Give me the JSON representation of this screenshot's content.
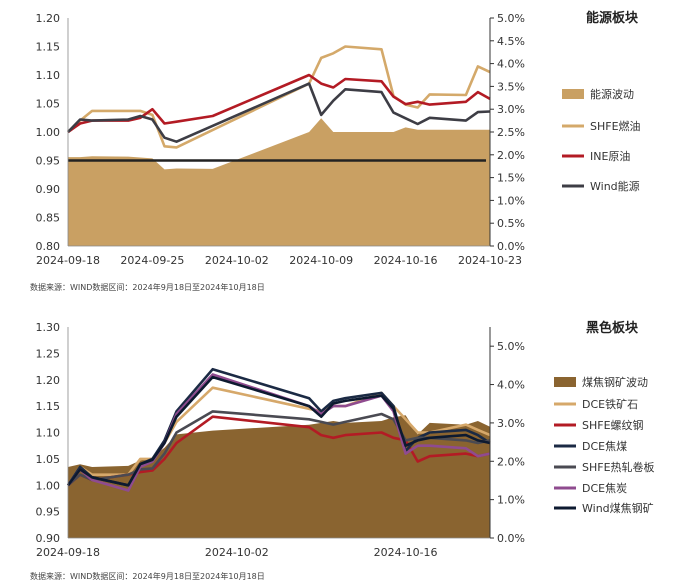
{
  "colors": {
    "energy_area": "#c9a063",
    "shfe_fuel": "#d4a96a",
    "ine_crude": "#b31b24",
    "wind_energy": "#3d3d45",
    "black_area": "#8a6430",
    "dce_iron": "#d6a86a",
    "shfe_rebar": "#b31b24",
    "dce_coking_coal": "#1b2a44",
    "shfe_hotroll": "#4a4a52",
    "dce_coke": "#8f4b8f",
    "wind_black": "#0d1a30",
    "baseline": "#222222"
  },
  "chart_data": [
    {
      "type": "line",
      "title": "能源板块",
      "source_note": "数据来源：WIND数据区间：2024年9月18日至2024年10月18日",
      "x_ticks": [
        "2024-09-18",
        "2024-09-25",
        "2024-10-02",
        "2024-10-09",
        "2024-10-16",
        "2024-10-23"
      ],
      "x_range": [
        "2024-09-18",
        "2024-10-23"
      ],
      "y_left": {
        "range": [
          0.8,
          1.2
        ],
        "ticks": [
          "0.80",
          "0.85",
          "0.90",
          "0.95",
          "1.00",
          "1.05",
          "1.10",
          "1.15",
          "1.20"
        ]
      },
      "y_right": {
        "range": [
          0.0,
          5.0
        ],
        "ticks": [
          "0.0%",
          "0.5%",
          "1.0%",
          "1.5%",
          "2.0%",
          "2.5%",
          "3.0%",
          "3.5%",
          "4.0%",
          "4.5%",
          "5.0%"
        ]
      },
      "reference_line": 0.95,
      "area": {
        "name": "能源波动",
        "axis": "right",
        "x": [
          "2024-09-18",
          "2024-09-19",
          "2024-09-20",
          "2024-09-23",
          "2024-09-24",
          "2024-09-25",
          "2024-09-26",
          "2024-09-27",
          "2024-09-30",
          "2024-10-08",
          "2024-10-09",
          "2024-10-10",
          "2024-10-11",
          "2024-10-14",
          "2024-10-15",
          "2024-10-16",
          "2024-10-17",
          "2024-10-18",
          "2024-10-21",
          "2024-10-22",
          "2024-10-23"
        ],
        "values": [
          1.95,
          1.95,
          1.97,
          1.96,
          1.94,
          1.92,
          1.68,
          1.7,
          1.69,
          2.5,
          2.8,
          2.5,
          2.5,
          2.5,
          2.5,
          2.6,
          2.55,
          2.55,
          2.55,
          2.55,
          2.55
        ]
      },
      "series": [
        {
          "name": "SHFE燃油",
          "color_key": "shfe_fuel",
          "axis": "left",
          "x": [
            "2024-09-18",
            "2024-09-19",
            "2024-09-20",
            "2024-09-23",
            "2024-09-24",
            "2024-09-25",
            "2024-09-26",
            "2024-09-27",
            "2024-10-08",
            "2024-10-09",
            "2024-10-10",
            "2024-10-11",
            "2024-10-14",
            "2024-10-15",
            "2024-10-16",
            "2024-10-17",
            "2024-10-18",
            "2024-10-21",
            "2024-10-22",
            "2024-10-23"
          ],
          "values": [
            1.0,
            1.02,
            1.037,
            1.037,
            1.037,
            1.03,
            0.975,
            0.973,
            1.085,
            1.13,
            1.138,
            1.15,
            1.145,
            1.063,
            1.048,
            1.043,
            1.066,
            1.065,
            1.115,
            1.105
          ]
        },
        {
          "name": "INE原油",
          "color_key": "ine_crude",
          "axis": "left",
          "x": [
            "2024-09-18",
            "2024-09-19",
            "2024-09-20",
            "2024-09-23",
            "2024-09-24",
            "2024-09-25",
            "2024-09-26",
            "2024-09-27",
            "2024-09-30",
            "2024-10-08",
            "2024-10-09",
            "2024-10-10",
            "2024-10-11",
            "2024-10-14",
            "2024-10-15",
            "2024-10-16",
            "2024-10-17",
            "2024-10-18",
            "2024-10-21",
            "2024-10-22",
            "2024-10-23"
          ],
          "values": [
            1.0,
            1.015,
            1.02,
            1.02,
            1.025,
            1.04,
            1.015,
            1.018,
            1.028,
            1.1,
            1.085,
            1.078,
            1.093,
            1.089,
            1.062,
            1.049,
            1.053,
            1.048,
            1.053,
            1.07,
            1.058
          ]
        },
        {
          "name": "Wind能源",
          "color_key": "wind_energy",
          "axis": "left",
          "x": [
            "2024-09-18",
            "2024-09-19",
            "2024-09-20",
            "2024-09-23",
            "2024-09-24",
            "2024-09-25",
            "2024-09-26",
            "2024-09-27",
            "2024-10-08",
            "2024-10-09",
            "2024-10-10",
            "2024-10-11",
            "2024-10-14",
            "2024-10-15",
            "2024-10-16",
            "2024-10-17",
            "2024-10-18",
            "2024-10-21",
            "2024-10-22",
            "2024-10-23"
          ],
          "values": [
            1.0,
            1.022,
            1.02,
            1.022,
            1.028,
            1.022,
            0.99,
            0.983,
            1.085,
            1.03,
            1.055,
            1.075,
            1.07,
            1.034,
            1.024,
            1.014,
            1.025,
            1.02,
            1.035,
            1.036
          ]
        }
      ],
      "legend": [
        "能源波动",
        "SHFE燃油",
        "INE原油",
        "Wind能源"
      ],
      "legend_position": "right",
      "grid": false
    },
    {
      "type": "line",
      "title": "黑色板块",
      "source_note": "数据来源：WIND数据区间：2024年9月18日至2024年10月18日",
      "x_ticks": [
        "2024-09-18",
        "2024-10-02",
        "2024-10-16"
      ],
      "x_range": [
        "2024-09-18",
        "2024-10-23"
      ],
      "y_left": {
        "range": [
          0.9,
          1.3
        ],
        "ticks": [
          "0.90",
          "0.95",
          "1.00",
          "1.05",
          "1.10",
          "1.15",
          "1.20",
          "1.25",
          "1.30"
        ]
      },
      "y_right": {
        "range": [
          0.0,
          5.5
        ],
        "ticks": [
          "0.0%",
          "1.0%",
          "2.0%",
          "3.0%",
          "4.0%",
          "5.0%"
        ]
      },
      "area": {
        "name": "煤焦钢矿波动",
        "axis": "right",
        "x": [
          "2024-09-18",
          "2024-09-19",
          "2024-09-20",
          "2024-09-23",
          "2024-09-24",
          "2024-09-25",
          "2024-09-26",
          "2024-09-27",
          "2024-09-30",
          "2024-10-08",
          "2024-10-09",
          "2024-10-10",
          "2024-10-11",
          "2024-10-14",
          "2024-10-15",
          "2024-10-16",
          "2024-10-17",
          "2024-10-18",
          "2024-10-21",
          "2024-10-22",
          "2024-10-23"
        ],
        "values": [
          1.85,
          1.92,
          1.85,
          1.88,
          2.02,
          2.1,
          2.35,
          2.7,
          2.8,
          2.95,
          3.0,
          3.05,
          3.0,
          3.05,
          3.15,
          3.2,
          2.7,
          3.0,
          2.95,
          3.05,
          2.9
        ]
      },
      "series": [
        {
          "name": "DCE铁矿石",
          "color_key": "dce_iron",
          "axis": "left",
          "x": [
            "2024-09-18",
            "2024-09-19",
            "2024-09-20",
            "2024-09-23",
            "2024-09-24",
            "2024-09-25",
            "2024-09-26",
            "2024-09-27",
            "2024-09-30",
            "2024-10-08",
            "2024-10-09",
            "2024-10-10",
            "2024-10-11",
            "2024-10-14",
            "2024-10-15",
            "2024-10-16",
            "2024-10-17",
            "2024-10-18",
            "2024-10-21",
            "2024-10-22",
            "2024-10-23"
          ],
          "values": [
            1.0,
            1.035,
            1.02,
            1.02,
            1.05,
            1.05,
            1.08,
            1.12,
            1.185,
            1.145,
            1.14,
            1.15,
            1.15,
            1.175,
            1.15,
            1.125,
            1.1,
            1.1,
            1.115,
            1.105,
            1.095
          ]
        },
        {
          "name": "SHFE螺纹钢",
          "color_key": "shfe_rebar",
          "axis": "left",
          "x": [
            "2024-09-18",
            "2024-09-19",
            "2024-09-20",
            "2024-09-23",
            "2024-09-24",
            "2024-09-25",
            "2024-09-26",
            "2024-09-27",
            "2024-09-30",
            "2024-10-08",
            "2024-10-09",
            "2024-10-10",
            "2024-10-11",
            "2024-10-14",
            "2024-10-15",
            "2024-10-16",
            "2024-10-17",
            "2024-10-18",
            "2024-10-21",
            "2024-10-22",
            "2024-10-23"
          ],
          "values": [
            1.0,
            1.02,
            1.01,
            1.02,
            1.025,
            1.028,
            1.05,
            1.08,
            1.13,
            1.11,
            1.095,
            1.09,
            1.095,
            1.1,
            1.09,
            1.085,
            1.045,
            1.055,
            1.06,
            1.055,
            1.06
          ]
        },
        {
          "name": "DCE焦煤",
          "color_key": "dce_coking_coal",
          "axis": "left",
          "x": [
            "2024-09-18",
            "2024-09-19",
            "2024-09-20",
            "2024-09-23",
            "2024-09-24",
            "2024-09-25",
            "2024-09-26",
            "2024-09-27",
            "2024-09-30",
            "2024-10-08",
            "2024-10-09",
            "2024-10-10",
            "2024-10-11",
            "2024-10-14",
            "2024-10-15",
            "2024-10-16",
            "2024-10-17",
            "2024-10-18",
            "2024-10-21",
            "2024-10-22",
            "2024-10-23"
          ],
          "values": [
            1.0,
            1.035,
            1.015,
            1.0,
            1.04,
            1.05,
            1.085,
            1.14,
            1.22,
            1.165,
            1.14,
            1.16,
            1.165,
            1.175,
            1.15,
            1.065,
            1.09,
            1.1,
            1.105,
            1.095,
            1.08
          ]
        },
        {
          "name": "SHFE热轧卷板",
          "color_key": "shfe_hotroll",
          "axis": "left",
          "x": [
            "2024-09-18",
            "2024-09-19",
            "2024-09-20",
            "2024-09-23",
            "2024-09-24",
            "2024-09-25",
            "2024-09-26",
            "2024-09-27",
            "2024-09-30",
            "2024-10-08",
            "2024-10-09",
            "2024-10-10",
            "2024-10-11",
            "2024-10-14",
            "2024-10-15",
            "2024-10-16",
            "2024-10-17",
            "2024-10-18",
            "2024-10-21",
            "2024-10-22",
            "2024-10-23"
          ],
          "values": [
            1.0,
            1.02,
            1.01,
            1.02,
            1.03,
            1.032,
            1.06,
            1.1,
            1.14,
            1.125,
            1.12,
            1.115,
            1.12,
            1.135,
            1.125,
            1.085,
            1.09,
            1.09,
            1.085,
            1.08,
            1.085
          ]
        },
        {
          "name": "DCE焦炭",
          "color_key": "dce_coke",
          "axis": "left",
          "x": [
            "2024-09-18",
            "2024-09-19",
            "2024-09-20",
            "2024-09-23",
            "2024-09-24",
            "2024-09-25",
            "2024-09-26",
            "2024-09-27",
            "2024-09-30",
            "2024-10-08",
            "2024-10-09",
            "2024-10-10",
            "2024-10-11",
            "2024-10-14",
            "2024-10-15",
            "2024-10-16",
            "2024-10-17",
            "2024-10-18",
            "2024-10-21",
            "2024-10-22",
            "2024-10-23"
          ],
          "values": [
            1.0,
            1.03,
            1.01,
            0.99,
            1.035,
            1.045,
            1.08,
            1.135,
            1.21,
            1.15,
            1.135,
            1.15,
            1.15,
            1.17,
            1.14,
            1.06,
            1.075,
            1.075,
            1.07,
            1.055,
            1.06
          ]
        },
        {
          "name": "Wind煤焦钢矿",
          "color_key": "wind_black",
          "axis": "left",
          "x": [
            "2024-09-18",
            "2024-09-19",
            "2024-09-20",
            "2024-09-23",
            "2024-09-24",
            "2024-09-25",
            "2024-09-26",
            "2024-09-27",
            "2024-09-30",
            "2024-10-08",
            "2024-10-09",
            "2024-10-10",
            "2024-10-11",
            "2024-10-14",
            "2024-10-15",
            "2024-10-16",
            "2024-10-17",
            "2024-10-18",
            "2024-10-21",
            "2024-10-22",
            "2024-10-23"
          ],
          "values": [
            1.0,
            1.03,
            1.015,
            1.0,
            1.04,
            1.048,
            1.08,
            1.13,
            1.205,
            1.15,
            1.13,
            1.155,
            1.16,
            1.17,
            1.145,
            1.075,
            1.085,
            1.09,
            1.095,
            1.085,
            1.08
          ]
        }
      ],
      "legend": [
        "煤焦钢矿波动",
        "DCE铁矿石",
        "SHFE螺纹钢",
        "DCE焦煤",
        "SHFE热轧卷板",
        "DCE焦炭",
        "Wind煤焦钢矿"
      ],
      "legend_position": "right",
      "grid": false
    }
  ]
}
